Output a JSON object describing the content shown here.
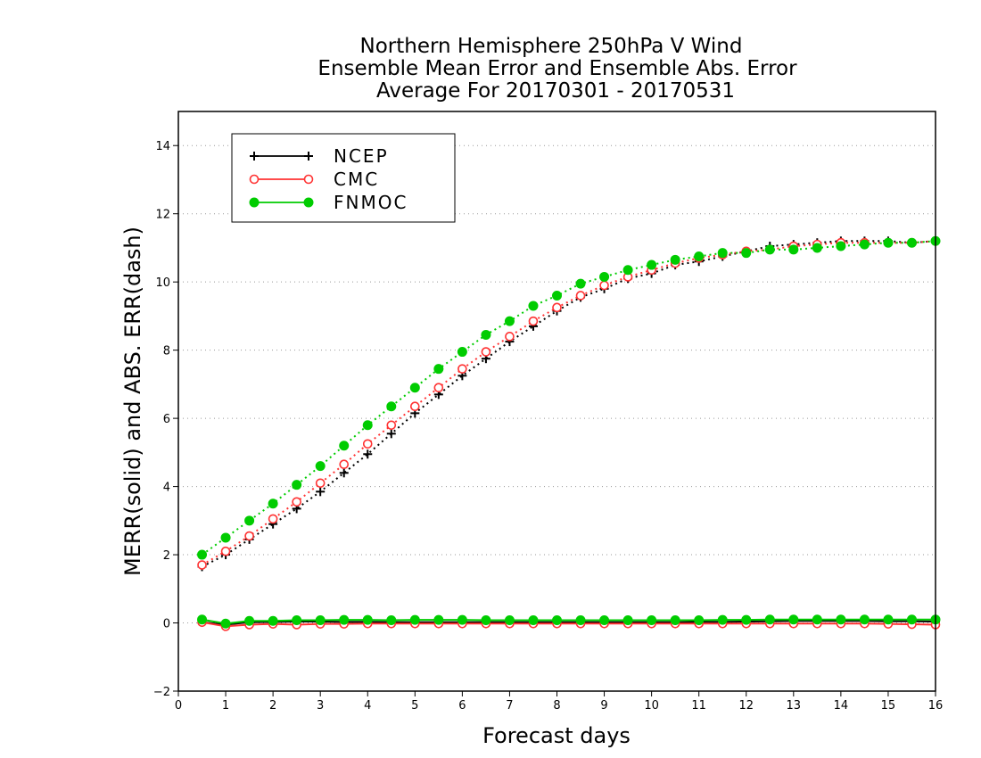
{
  "chart_data": {
    "type": "line",
    "title_lines": [
      "Northern Hemisphere 250hPa V Wind",
      "Ensemble Mean Error and Ensemble Abs. Error",
      "Average For 20170301 - 20170531"
    ],
    "xlabel": "Forecast days",
    "ylabel": "MERR(solid) and ABS. ERR(dash)",
    "xlim": [
      0,
      16
    ],
    "ylim": [
      -2,
      15
    ],
    "xticks": [
      "0",
      "1",
      "2",
      "3",
      "4",
      "5",
      "6",
      "7",
      "8",
      "9",
      "10",
      "11",
      "12",
      "13",
      "14",
      "15",
      "16"
    ],
    "yticks": [
      "−2",
      "0",
      "2",
      "4",
      "6",
      "8",
      "10",
      "12",
      "14"
    ],
    "grid": "horizontal dotted",
    "legend_position": "top-left",
    "x": [
      0.5,
      1,
      1.5,
      2,
      2.5,
      3,
      3.5,
      4,
      4.5,
      5,
      5.5,
      6,
      6.5,
      7,
      7.5,
      8,
      8.5,
      9,
      9.5,
      10,
      10.5,
      11,
      11.5,
      12,
      12.5,
      13,
      13.5,
      14,
      14.5,
      15,
      15.5,
      16
    ],
    "series": [
      {
        "name": "NCEP",
        "color": "#000000",
        "marker": "plus",
        "abs_err": [
          1.65,
          2.0,
          2.45,
          2.9,
          3.35,
          3.85,
          4.4,
          4.95,
          5.55,
          6.15,
          6.7,
          7.25,
          7.75,
          8.25,
          8.7,
          9.15,
          9.55,
          9.8,
          10.1,
          10.25,
          10.5,
          10.6,
          10.75,
          10.9,
          11.05,
          11.1,
          11.15,
          11.2,
          11.2,
          11.2,
          11.15,
          11.2
        ],
        "mean_err": [
          0.02,
          -0.05,
          0.02,
          0.03,
          0.04,
          0.04,
          0.03,
          0.03,
          0.02,
          0.02,
          0.02,
          0.02,
          0.02,
          0.02,
          0.02,
          0.02,
          0.02,
          0.02,
          0.02,
          0.02,
          0.02,
          0.03,
          0.03,
          0.04,
          0.05,
          0.06,
          0.06,
          0.06,
          0.06,
          0.05,
          0.05,
          0.04
        ]
      },
      {
        "name": "CMC",
        "color": "#ff3333",
        "marker": "open-circle",
        "abs_err": [
          1.7,
          2.1,
          2.55,
          3.05,
          3.55,
          4.1,
          4.65,
          5.25,
          5.8,
          6.35,
          6.9,
          7.45,
          7.95,
          8.4,
          8.85,
          9.25,
          9.6,
          9.9,
          10.15,
          10.35,
          10.55,
          10.7,
          10.8,
          10.9,
          10.95,
          11.05,
          11.1,
          11.15,
          11.15,
          11.15,
          11.15,
          11.2
        ],
        "mean_err": [
          0.02,
          -0.1,
          -0.05,
          -0.03,
          -0.05,
          -0.03,
          -0.03,
          -0.02,
          -0.02,
          -0.02,
          -0.02,
          -0.02,
          -0.02,
          -0.02,
          -0.02,
          -0.02,
          -0.02,
          -0.02,
          -0.02,
          -0.02,
          -0.02,
          -0.02,
          -0.02,
          -0.02,
          -0.02,
          -0.02,
          -0.02,
          -0.02,
          -0.02,
          -0.03,
          -0.04,
          -0.05
        ]
      },
      {
        "name": "FNMOC",
        "color": "#00cc00",
        "marker": "filled-circle",
        "abs_err": [
          2.0,
          2.5,
          3.0,
          3.5,
          4.05,
          4.6,
          5.2,
          5.8,
          6.35,
          6.9,
          7.45,
          7.95,
          8.45,
          8.85,
          9.3,
          9.6,
          9.95,
          10.15,
          10.35,
          10.5,
          10.65,
          10.75,
          10.85,
          10.85,
          10.95,
          10.95,
          11.0,
          11.05,
          11.1,
          11.15,
          11.15,
          11.2
        ],
        "mean_err": [
          0.1,
          -0.02,
          0.06,
          0.06,
          0.08,
          0.08,
          0.09,
          0.09,
          0.08,
          0.09,
          0.09,
          0.09,
          0.08,
          0.08,
          0.08,
          0.08,
          0.08,
          0.08,
          0.08,
          0.08,
          0.08,
          0.08,
          0.09,
          0.09,
          0.1,
          0.1,
          0.1,
          0.1,
          0.1,
          0.1,
          0.1,
          0.1
        ]
      }
    ]
  }
}
